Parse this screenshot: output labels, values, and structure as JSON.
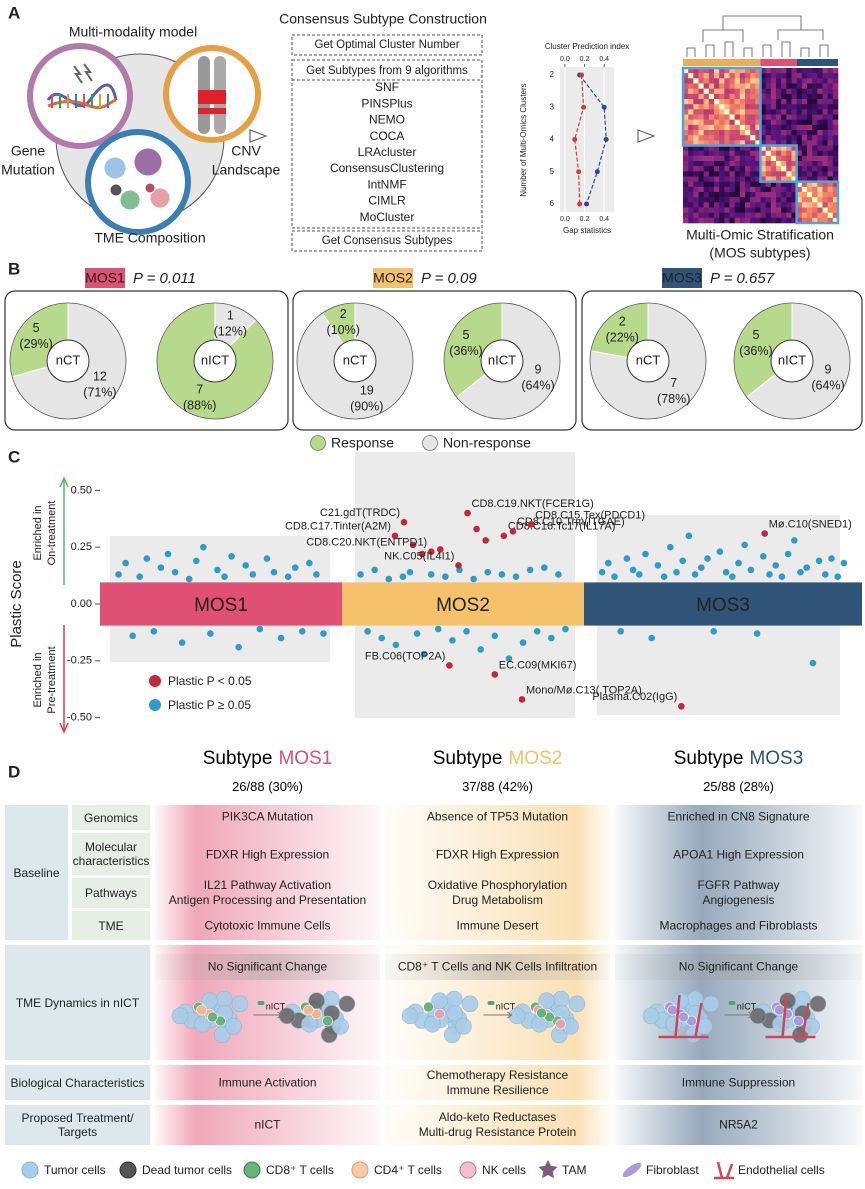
{
  "panel_labels": [
    "A",
    "B",
    "C",
    "D"
  ],
  "panel_a": {
    "model_title": "Multi-modality model",
    "modalities": [
      [
        "Gene",
        "Mutation"
      ],
      [
        "CNV",
        "Landscape"
      ],
      [
        "TME Composition"
      ]
    ],
    "construction_title": "Consensus Subtype Construction",
    "steps": [
      "Get Optimal Cluster Number",
      "Get Subtypes from 9 algorithms",
      "Get Consensus Subtypes"
    ],
    "algorithms": [
      "SNF",
      "PINSPlus",
      "NEMO",
      "COCA",
      "LRAcluster",
      "ConsensusClustering",
      "IntNMF",
      "CIMLR",
      "MoCluster"
    ],
    "stratification": [
      "Multi-Omic Stratification",
      "(MOS subtypes)"
    ]
  },
  "panel_b": {
    "groups": [
      {
        "name": "MOS1",
        "color": "#e04f74",
        "p_label": "P = 0.011"
      },
      {
        "name": "MOS2",
        "color": "#f5c26b",
        "p_label": "P = 0.09"
      },
      {
        "name": "MOS3",
        "color": "#2f5478",
        "p_label": "P = 0.657"
      }
    ],
    "legend": [
      {
        "name": "Response",
        "color": "#b7d98b"
      },
      {
        "name": "Non-response",
        "color": "#e5e5e5"
      }
    ]
  },
  "chart_data": [
    {
      "type": "line",
      "orientation": "horizontal",
      "x2label": "Cluster Prediction index",
      "xlabel": "Gap statistics",
      "ylabel": "Number of Multi-Omics Clusters",
      "categories": [
        "2",
        "3",
        "4",
        "5",
        "6"
      ],
      "category_colors": [
        "#333333",
        "#d63a3a",
        "#333333",
        "#333333",
        "#333333"
      ],
      "xlim": [
        -0.05,
        0.5
      ],
      "xticks": [
        {
          "value": 0,
          "label": "0.0"
        },
        {
          "value": 0.2,
          "label": "0.2"
        },
        {
          "value": 0.4,
          "label": "0.4"
        }
      ],
      "x2lim": [
        -0.05,
        0.5
      ],
      "x2ticks": [
        {
          "value": 0,
          "label": "0.0"
        },
        {
          "value": 0.2,
          "label": "0.2"
        },
        {
          "value": 0.4,
          "label": "0.4"
        }
      ],
      "series": [
        {
          "color": "#2a4a9a",
          "axis": "x2",
          "values": [
            0.15,
            0.4,
            0.42,
            0.33,
            0.22
          ]
        },
        {
          "color": "#d63a3a",
          "values": [
            0.17,
            0.19,
            0.1,
            0.14,
            0.15
          ]
        }
      ]
    },
    {
      "type": "pie",
      "group": 0,
      "center_label": "nCT",
      "values": [
        5,
        12
      ],
      "percent_labels": [
        "(29%)",
        "(71%)"
      ],
      "colors": [
        "#b7d98b",
        "#e5e5e5"
      ]
    },
    {
      "type": "pie",
      "group": 0,
      "center_label": "nICT",
      "values": [
        7,
        1
      ],
      "percent_labels": [
        "(88%)",
        "(12%)"
      ],
      "colors": [
        "#b7d98b",
        "#e5e5e5"
      ]
    },
    {
      "type": "pie",
      "group": 1,
      "center_label": "nCT",
      "values": [
        2,
        19
      ],
      "percent_labels": [
        "(10%)",
        "(90%)"
      ],
      "colors": [
        "#b7d98b",
        "#e5e5e5"
      ]
    },
    {
      "type": "pie",
      "group": 1,
      "center_label": "nICT",
      "values": [
        5,
        9
      ],
      "percent_labels": [
        "(36%)",
        "(64%)"
      ],
      "colors": [
        "#b7d98b",
        "#e5e5e5"
      ]
    },
    {
      "type": "pie",
      "group": 2,
      "center_label": "nCT",
      "values": [
        2,
        7
      ],
      "percent_labels": [
        "(22%)",
        "(78%)"
      ],
      "colors": [
        "#b7d98b",
        "#e5e5e5"
      ]
    },
    {
      "type": "pie",
      "group": 2,
      "center_label": "nICT",
      "values": [
        5,
        9
      ],
      "percent_labels": [
        "(36%)",
        "(64%)"
      ],
      "colors": [
        "#b7d98b",
        "#e5e5e5"
      ]
    },
    {
      "type": "strip",
      "ylabel": "Plastic Score",
      "up_label": [
        "Enriched in",
        "On-treatment"
      ],
      "down_label": [
        "Enriched in",
        "Pre-treatment"
      ],
      "categories": [
        "MOS1",
        "MOS2",
        "MOS3"
      ],
      "category_colors": [
        "#e04f74",
        "#f5c26b",
        "#2f5478"
      ],
      "ylim": [
        -0.55,
        0.55
      ],
      "yticks": [
        {
          "value": 0.5,
          "label": "0.50"
        },
        {
          "value": 0.25,
          "label": "0.25"
        },
        {
          "value": 0,
          "label": "0.00"
        },
        {
          "value": -0.25,
          "label": "-0.25"
        },
        {
          "value": -0.5,
          "label": "-0.50"
        }
      ],
      "series": [
        {
          "name": "Plastic P ≥ 0.05",
          "color": "#2e9bc9",
          "values": [
            [
              0.13,
              0.18,
              -0.14,
              0.12,
              0.2,
              -0.12,
              0.16,
              0.22,
              0.14,
              -0.17,
              0.11,
              0.19,
              0.25,
              -0.13,
              0.15,
              0.12,
              0.21,
              -0.19,
              0.17,
              0.13,
              -0.11,
              0.2,
              0.14,
              -0.15,
              0.12,
              0.16,
              -0.12,
              0.18,
              0.13,
              -0.13
            ],
            [
              0.13,
              -0.12,
              0.15,
              -0.15,
              0.11,
              -0.18,
              0.12,
              0.14,
              -0.13,
              -0.22,
              0.13,
              -0.11,
              0.12,
              -0.16,
              0.15,
              -0.12,
              0.11,
              -0.2,
              0.14,
              -0.14,
              0.13,
              -0.24,
              0.12,
              -0.17,
              0.15,
              -0.12,
              0.16,
              -0.15,
              0.13,
              -0.11
            ],
            [
              0.14,
              0.18,
              0.12,
              -0.12,
              0.2,
              0.15,
              0.13,
              0.22,
              -0.15,
              0.17,
              0.12,
              0.25,
              0.14,
              0.19,
              0.3,
              0.13,
              0.16,
              0.2,
              -0.12,
              0.23,
              0.14,
              0.12,
              0.18,
              0.26,
              0.15,
              -0.13,
              0.21,
              0.13,
              0.17,
              0.12,
              0.22,
              0.28,
              0.14,
              0.16,
              -0.26,
              0.19,
              0.13,
              0.2,
              0.12,
              0.18
            ]
          ]
        },
        {
          "name": "Plastic P < 0.05",
          "color": "#c3283a",
          "values": [
            [],
            [
              0.3,
              0.36,
              0.26,
              0.22,
              0.23,
              0.24,
              -0.27,
              0.17,
              0.4,
              0.33,
              0.28,
              -0.31,
              0.3,
              0.32,
              -0.42,
              0.35
            ],
            [
              -0.45,
              0.31
            ]
          ],
          "labels": [
            [],
            [
              "CD8.C17.Tinter(A2M)",
              "C21.gdT(TRDC)",
              null,
              null,
              "CD8.C20.NKT(ENTPD1)",
              null,
              "FB.C06(TOP2A)",
              "NK.C05(IL4I1)",
              "CD8.C19.NKT(FCER1G)",
              null,
              null,
              "EC.C09(MKI67)",
              "CD8.C16.Tc17(IL17A)",
              "CD8.C10.Trm(ITGAE)",
              "Mono/Mø.C13( TOP2A)",
              "CD8.C15.Tex(PDCD1)"
            ],
            [
              "Plasma.C02(IgG)",
              "Mø.C10(SNED1)"
            ]
          ]
        }
      ]
    }
  ],
  "panel_d": {
    "columns": [
      {
        "prefix": "Subtype",
        "name": "MOS1",
        "color": "#e04f74",
        "count": "26/88 (30%)",
        "arrow_label": "nICT",
        "cells": {
          "genomics": [
            "PIK3CA Mutation"
          ],
          "molecular": [
            "FDXR High Expression"
          ],
          "pathways": [
            "IL21 Pathway Activation",
            "Antigen Processing and Presentation"
          ],
          "tme": [
            "Cytotoxic Immune Cells"
          ],
          "dynamics": [
            "No Significant Change"
          ],
          "bio": [
            "Immune Activation"
          ],
          "treatment": [
            "nICT"
          ]
        }
      },
      {
        "prefix": "Subtype",
        "name": "MOS2",
        "color": "#f5c26b",
        "count": "37/88 (42%)",
        "arrow_label": "nICT",
        "cells": {
          "genomics": [
            "Absence of TP53 Mutation"
          ],
          "molecular": [
            "FDXR High Expression"
          ],
          "pathways": [
            "Oxidative Phosphorylation",
            "Drug Metabolism"
          ],
          "tme": [
            "Immune Desert"
          ],
          "dynamics": [
            "CD8⁺ T Cells and NK Cells Infiltration"
          ],
          "bio": [
            "Chemotherapy Resistance",
            "Immune Resilience"
          ],
          "treatment": [
            "Aldo-keto Reductases",
            "Multi-drug Resistance Protein"
          ]
        }
      },
      {
        "prefix": "Subtype",
        "name": "MOS3",
        "color": "#2f5478",
        "count": "25/88 (28%)",
        "arrow_label": "nICT",
        "cells": {
          "genomics": [
            "Enriched in CN8 Signature"
          ],
          "molecular": [
            "APOA1 High Expression"
          ],
          "pathways": [
            "FGFR Pathway",
            "Angiogenesis"
          ],
          "tme": [
            "Macrophages and Fibroblasts"
          ],
          "dynamics": [
            "No Significant Change"
          ],
          "bio": [
            "Immune Suppression"
          ],
          "treatment": [
            "NR5A2"
          ]
        }
      }
    ],
    "row_headers": {
      "baseline": "Baseline",
      "genomics": "Genomics",
      "molecular": "Molecular characteristics",
      "pathways": "Pathways",
      "tme": "TME",
      "dynamics": "TME Dynamics in nICT",
      "bio": "Biological Characteristics",
      "treatment": "Proposed Treatment/ Targets"
    }
  },
  "cell_legend": [
    "Tumor cells",
    "Dead tumor cells",
    "CD8⁺ T cells",
    "CD4⁺ T cells",
    "NK cells",
    "TAM",
    "Fibroblast",
    "Endothelial cells"
  ]
}
